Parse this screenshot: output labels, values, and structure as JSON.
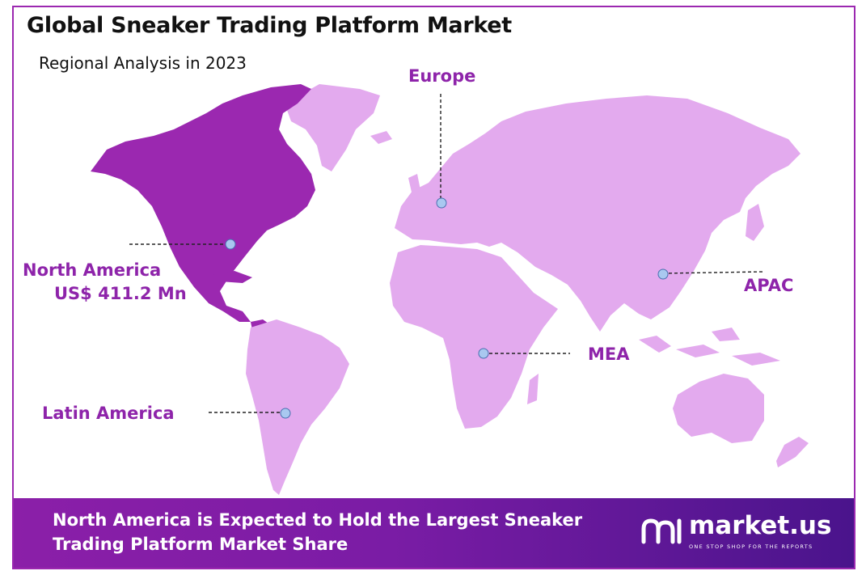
{
  "title": "Global Sneaker Trading Platform Market",
  "subtitle": "Regional Analysis in 2023",
  "regions": {
    "north_america": {
      "name": "North America",
      "value": "US$ 411.2 Mn",
      "highlight": "#9b28b0"
    },
    "europe": {
      "name": "Europe"
    },
    "apac": {
      "name": "APAC"
    },
    "mea": {
      "name": "MEA"
    },
    "latin_america": {
      "name": "Latin America"
    }
  },
  "colors": {
    "accent": "#8e24aa",
    "land": "#e3aaee",
    "highlight": "#9b28b0",
    "marker": "#a9c8f0"
  },
  "footer": {
    "text": "North America is Expected to Hold the Largest Sneaker Trading Platform Market Share",
    "logo_name": "market.us",
    "logo_tagline": "ONE STOP SHOP FOR THE REPORTS"
  }
}
